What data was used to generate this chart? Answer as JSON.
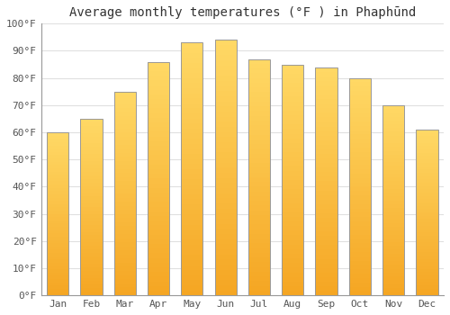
{
  "title": "Average monthly temperatures (°F ) in Phaphūnd",
  "months": [
    "Jan",
    "Feb",
    "Mar",
    "Apr",
    "May",
    "Jun",
    "Jul",
    "Aug",
    "Sep",
    "Oct",
    "Nov",
    "Dec"
  ],
  "values": [
    60,
    65,
    75,
    86,
    93,
    94,
    87,
    85,
    84,
    80,
    70,
    61
  ],
  "bar_color_top": "#FFD966",
  "bar_color_bottom": "#F5A623",
  "bar_edge_color": "#999999",
  "ylim": [
    0,
    100
  ],
  "yticks": [
    0,
    10,
    20,
    30,
    40,
    50,
    60,
    70,
    80,
    90,
    100
  ],
  "ytick_labels": [
    "0°F",
    "10°F",
    "20°F",
    "30°F",
    "40°F",
    "50°F",
    "60°F",
    "70°F",
    "80°F",
    "90°F",
    "100°F"
  ],
  "background_color": "#ffffff",
  "grid_color": "#e0e0e0",
  "title_fontsize": 10,
  "tick_fontsize": 8,
  "bar_width": 0.65,
  "figsize": [
    5.0,
    3.5
  ],
  "dpi": 100
}
